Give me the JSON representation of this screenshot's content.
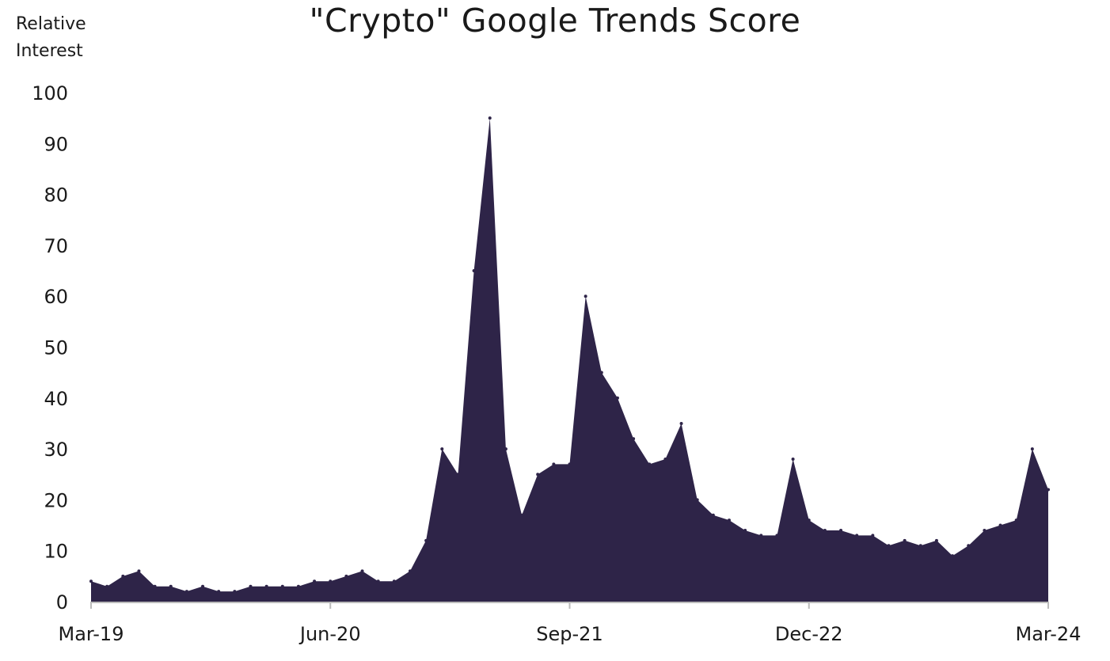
{
  "chart_data": {
    "type": "area",
    "title": "\"Crypto\" Google Trends Score",
    "ylabel": [
      "Relative",
      "Interest"
    ],
    "xlabel": "",
    "ylim": [
      0,
      100
    ],
    "yticks": [
      0,
      10,
      20,
      30,
      40,
      50,
      60,
      70,
      80,
      90,
      100
    ],
    "xlim": [
      "2019-03",
      "2024-03"
    ],
    "xticks": [
      {
        "label": "Mar-19",
        "date": "2019-03"
      },
      {
        "label": "Jun-20",
        "date": "2020-06"
      },
      {
        "label": "Sep-21",
        "date": "2021-09"
      },
      {
        "label": "Dec-22",
        "date": "2022-12"
      },
      {
        "label": "Mar-24",
        "date": "2024-03"
      }
    ],
    "grid": false,
    "legend": "none",
    "colors": {
      "fill": "#2e2448",
      "axis": "#bbbbbb"
    },
    "series": [
      {
        "x": [
          "2019-03",
          "2019-04",
          "2019-05",
          "2019-06",
          "2019-07",
          "2019-08",
          "2019-09",
          "2019-10",
          "2019-11",
          "2019-12",
          "2020-01",
          "2020-02",
          "2020-03",
          "2020-04",
          "2020-05",
          "2020-06",
          "2020-07",
          "2020-08",
          "2020-09",
          "2020-10",
          "2020-11",
          "2020-12",
          "2021-01",
          "2021-02",
          "2021-03",
          "2021-04",
          "2021-05",
          "2021-06",
          "2021-07",
          "2021-08",
          "2021-09",
          "2021-10",
          "2021-11",
          "2021-12",
          "2022-01",
          "2022-02",
          "2022-03",
          "2022-04",
          "2022-05",
          "2022-06",
          "2022-07",
          "2022-08",
          "2022-09",
          "2022-10",
          "2022-11",
          "2022-12",
          "2023-01",
          "2023-02",
          "2023-03",
          "2023-04",
          "2023-05",
          "2023-06",
          "2023-07",
          "2023-08",
          "2023-09",
          "2023-10",
          "2023-11",
          "2023-12",
          "2024-01",
          "2024-02",
          "2024-03"
        ],
        "values": [
          4,
          3,
          5,
          6,
          3,
          3,
          2,
          3,
          2,
          2,
          3,
          3,
          3,
          3,
          4,
          4,
          5,
          6,
          4,
          4,
          6,
          12,
          30,
          25,
          65,
          95,
          30,
          17,
          25,
          27,
          27,
          60,
          45,
          40,
          32,
          27,
          28,
          35,
          20,
          17,
          16,
          14,
          13,
          13,
          28,
          16,
          14,
          14,
          13,
          13,
          11,
          12,
          11,
          12,
          9,
          11,
          14,
          15,
          16,
          30,
          22
        ]
      }
    ]
  }
}
